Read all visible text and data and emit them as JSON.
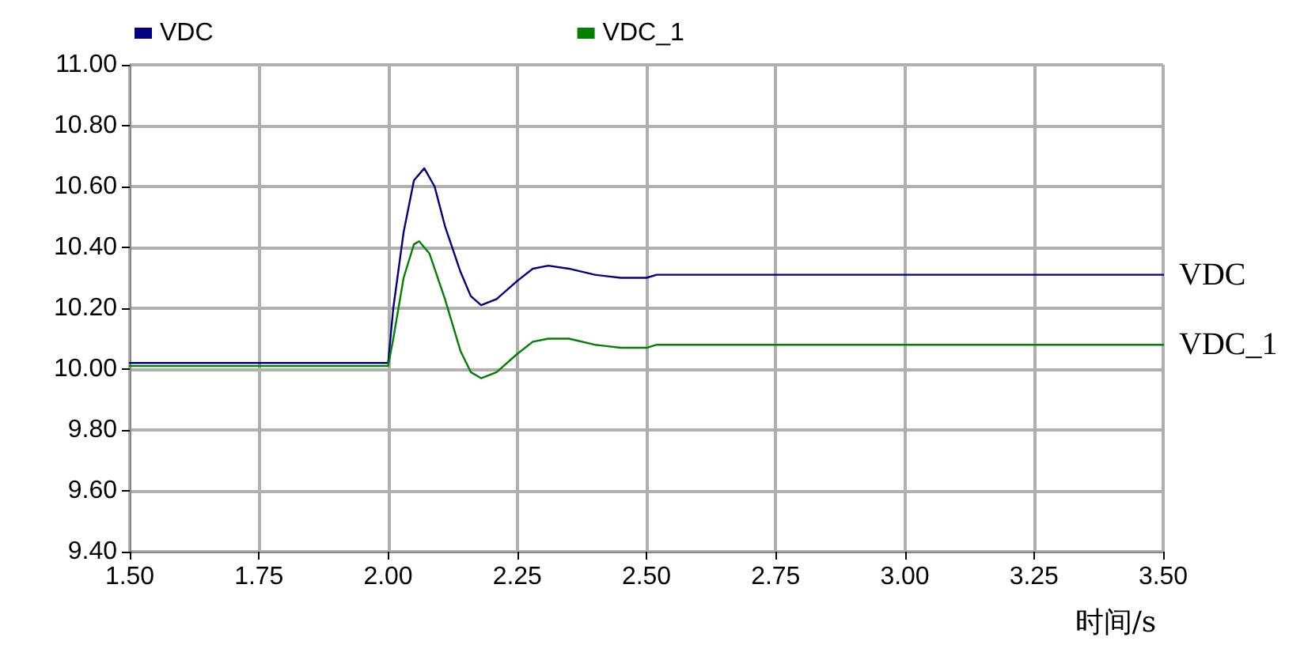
{
  "chart_data": {
    "type": "line",
    "xlabel": "时间/s",
    "legend": "top",
    "grid": true,
    "marker": "none",
    "line_style": "solid",
    "xlim": [
      1.5,
      3.5
    ],
    "ylim": [
      9.4,
      11.0
    ],
    "xticks": [
      {
        "value": 1.5,
        "label": "1.50"
      },
      {
        "value": 1.75,
        "label": "1.75"
      },
      {
        "value": 2.0,
        "label": "2.00"
      },
      {
        "value": 2.25,
        "label": "2.25"
      },
      {
        "value": 2.5,
        "label": "2.50"
      },
      {
        "value": 2.75,
        "label": "2.75"
      },
      {
        "value": 3.0,
        "label": "3.00"
      },
      {
        "value": 3.25,
        "label": "3.25"
      },
      {
        "value": 3.5,
        "label": "3.50"
      }
    ],
    "yticks": [
      {
        "value": 9.4,
        "label": "9.40"
      },
      {
        "value": 9.6,
        "label": "9.60"
      },
      {
        "value": 9.8,
        "label": "9.80"
      },
      {
        "value": 10.0,
        "label": "10.00"
      },
      {
        "value": 10.2,
        "label": "10.20"
      },
      {
        "value": 10.4,
        "label": "10.40"
      },
      {
        "value": 10.6,
        "label": "10.60"
      },
      {
        "value": 10.8,
        "label": "10.80"
      },
      {
        "value": 11.0,
        "label": "11.00"
      }
    ],
    "series": [
      {
        "name": "VDC",
        "color": "#000080",
        "x": [
          1.5,
          2.0,
          2.01,
          2.03,
          2.05,
          2.07,
          2.09,
          2.11,
          2.14,
          2.16,
          2.18,
          2.21,
          2.25,
          2.28,
          2.31,
          2.35,
          2.4,
          2.45,
          2.5,
          2.52,
          3.5
        ],
        "values": [
          10.02,
          10.02,
          10.2,
          10.45,
          10.62,
          10.66,
          10.6,
          10.47,
          10.32,
          10.24,
          10.21,
          10.23,
          10.29,
          10.33,
          10.34,
          10.33,
          10.31,
          10.3,
          10.3,
          10.31,
          10.31
        ]
      },
      {
        "name": "VDC_1",
        "color": "#008000",
        "x": [
          1.5,
          2.0,
          2.01,
          2.03,
          2.05,
          2.06,
          2.08,
          2.11,
          2.14,
          2.16,
          2.18,
          2.21,
          2.25,
          2.28,
          2.31,
          2.35,
          2.4,
          2.45,
          2.5,
          2.52,
          3.5
        ],
        "values": [
          10.01,
          10.01,
          10.1,
          10.3,
          10.41,
          10.42,
          10.38,
          10.23,
          10.06,
          9.99,
          9.97,
          9.99,
          10.05,
          10.09,
          10.1,
          10.1,
          10.08,
          10.07,
          10.07,
          10.08,
          10.08
        ]
      }
    ]
  }
}
